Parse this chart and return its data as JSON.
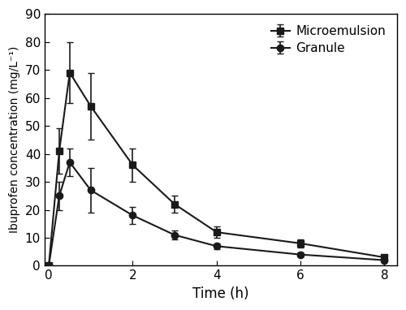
{
  "microemulsion": {
    "x": [
      0,
      0.25,
      0.5,
      1,
      2,
      3,
      4,
      6,
      8
    ],
    "y": [
      0,
      41,
      69,
      57,
      36,
      22,
      12,
      8,
      3
    ],
    "yerr": [
      0,
      8,
      11,
      12,
      6,
      3,
      2,
      1.5,
      0.8
    ],
    "label": "Microemulsion",
    "marker": "s",
    "color": "#1a1a1a"
  },
  "granule": {
    "x": [
      0,
      0.25,
      0.5,
      1,
      2,
      3,
      4,
      6,
      8
    ],
    "y": [
      0,
      25,
      37,
      27,
      18,
      11,
      7,
      4,
      2
    ],
    "yerr": [
      0,
      5,
      5,
      8,
      3,
      1.5,
      1,
      0.8,
      0.5
    ],
    "label": "Granule",
    "marker": "o",
    "color": "#1a1a1a"
  },
  "xlabel": "Time (h)",
  "ylabel": "Ibuprofen concentration (mg/L⁻¹)",
  "ylim": [
    0,
    90
  ],
  "xlim": [
    -0.1,
    8.3
  ],
  "yticks": [
    0,
    10,
    20,
    30,
    40,
    50,
    60,
    70,
    80,
    90
  ],
  "xticks": [
    0,
    2,
    4,
    6,
    8
  ],
  "xtick_labels": [
    "0",
    "2",
    "4",
    "6",
    "8"
  ],
  "legend_loc": "upper right",
  "linewidth": 1.5,
  "markersize": 6,
  "capsize": 3,
  "elinewidth": 1.2
}
